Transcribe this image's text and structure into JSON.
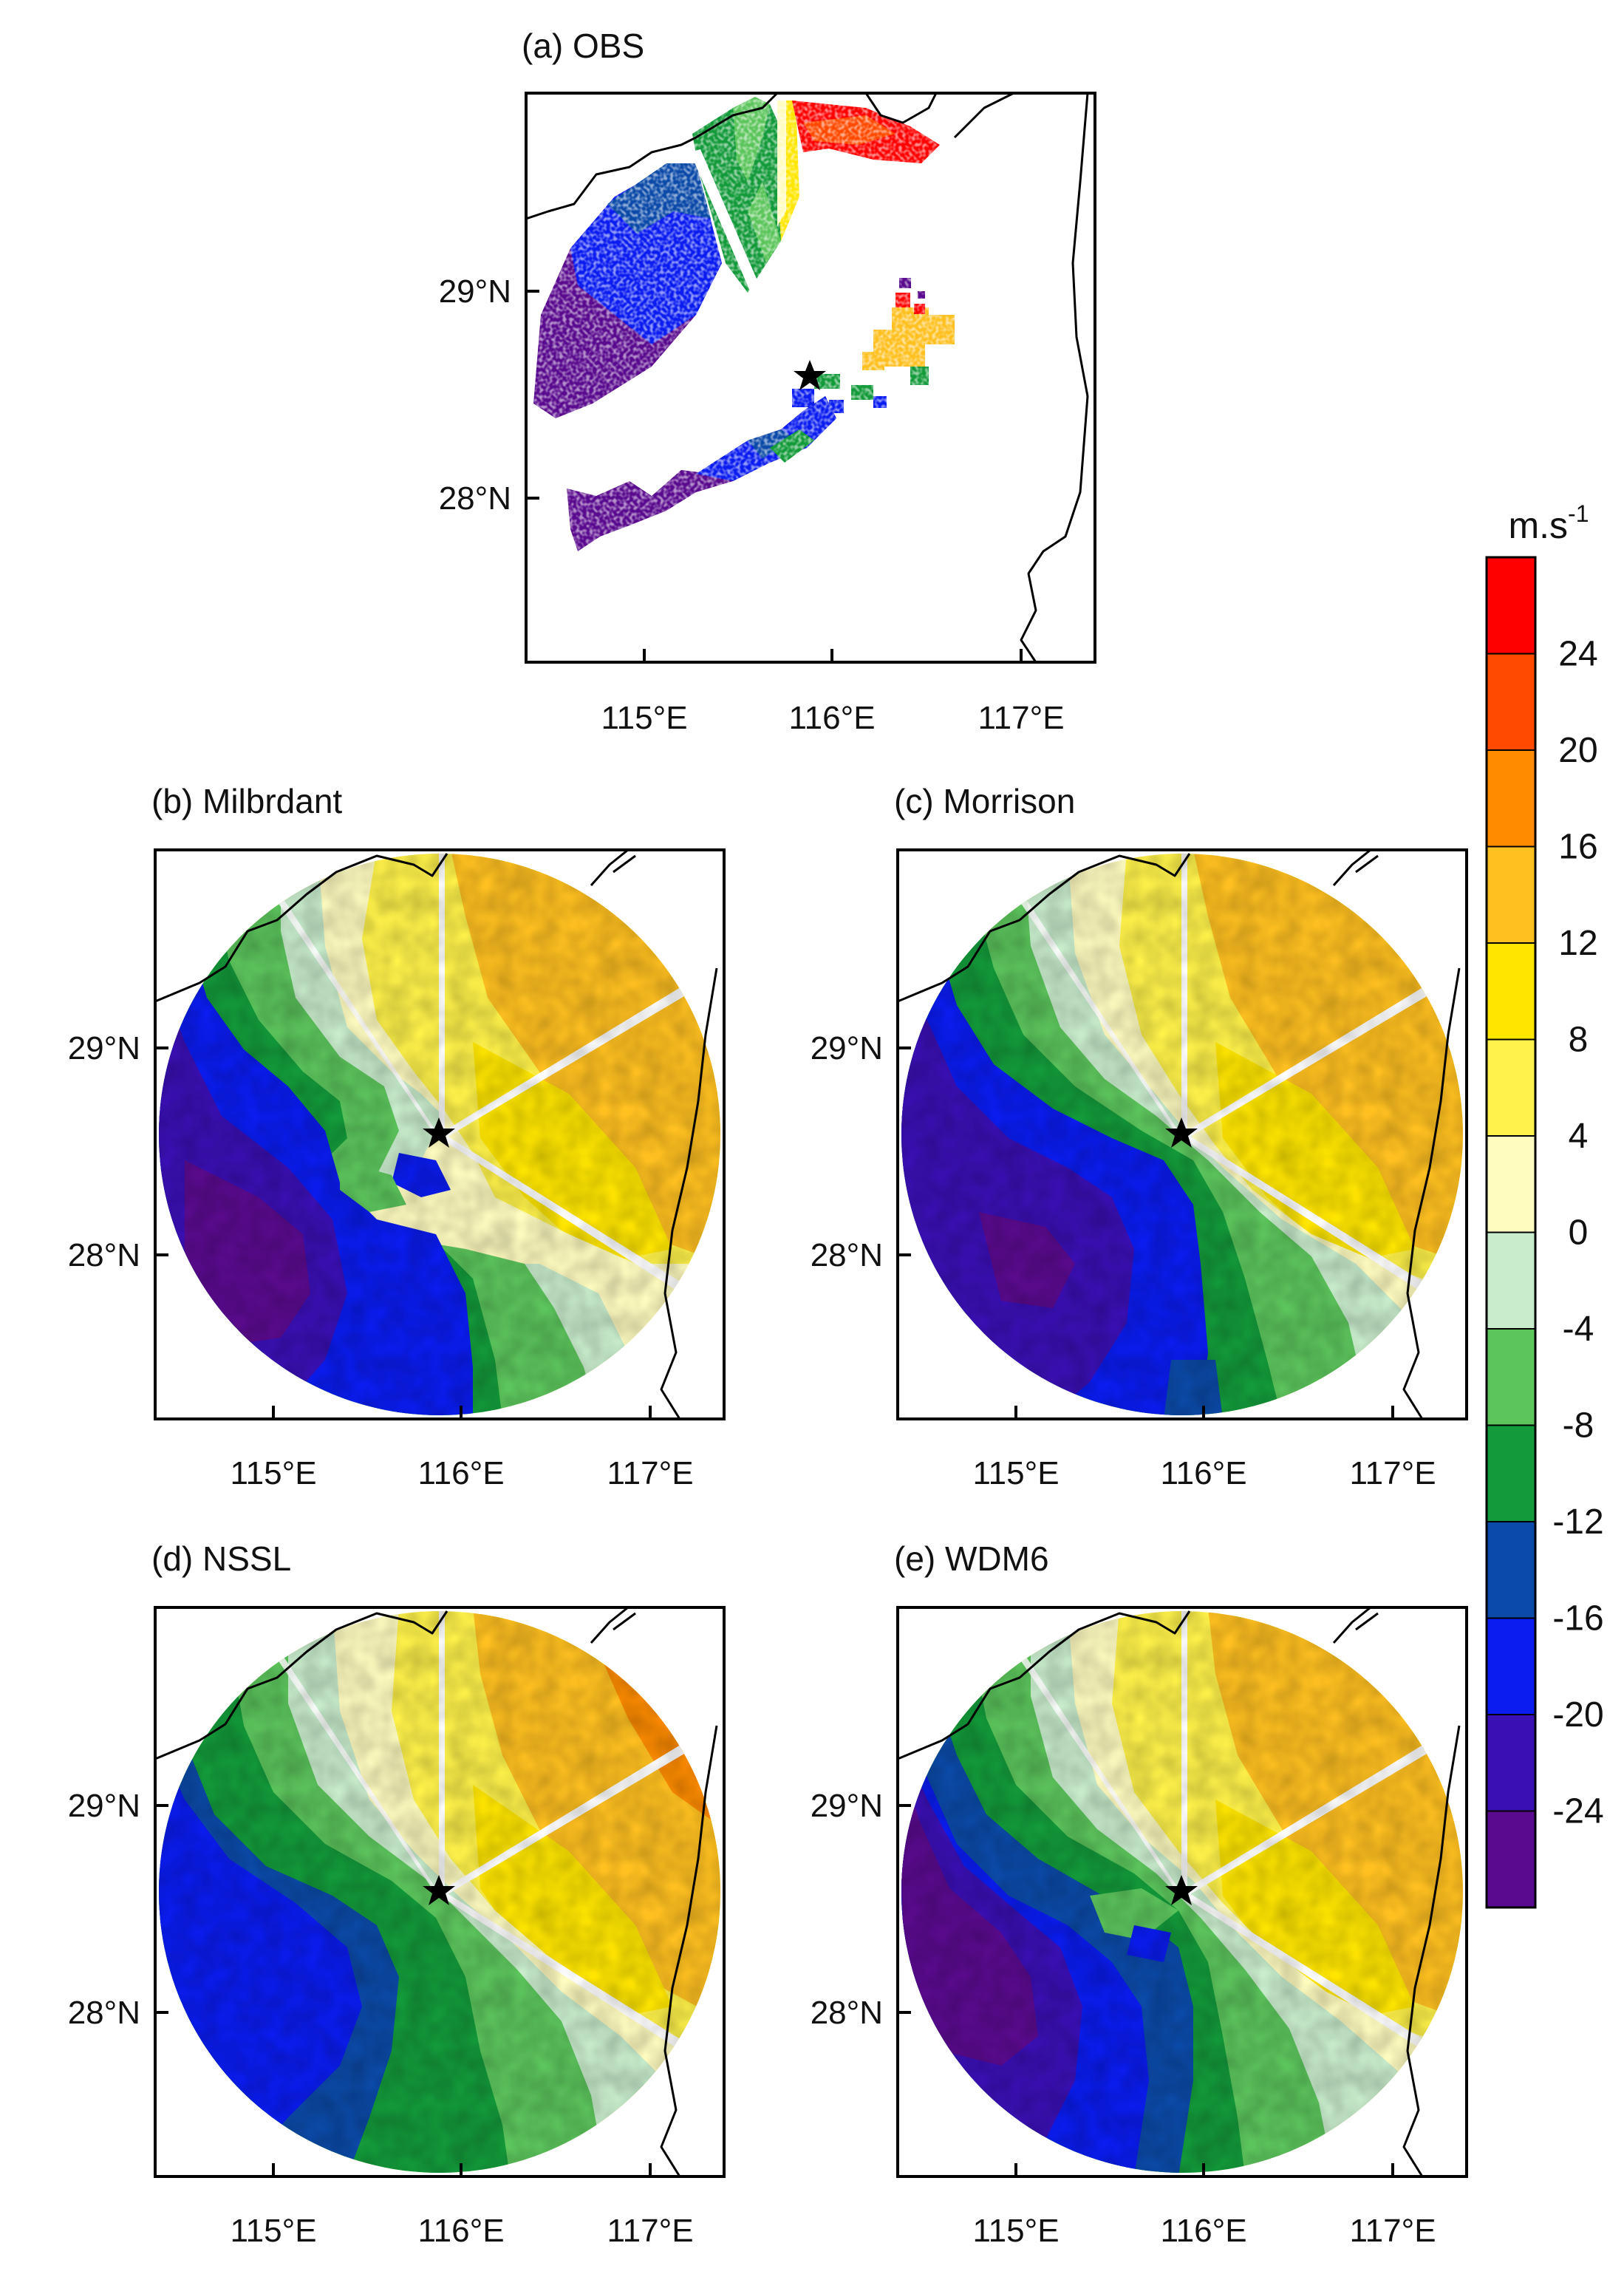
{
  "panels": [
    {
      "id": "a",
      "title": "(a) OBS"
    },
    {
      "id": "b",
      "title": "(b) Milbrdant"
    },
    {
      "id": "c",
      "title": "(c) Morrison"
    },
    {
      "id": "d",
      "title": "(d) NSSL"
    },
    {
      "id": "e",
      "title": "(e) WDM6"
    }
  ],
  "axes": {
    "lon_ticks": [
      "115°E",
      "116°E",
      "117°E"
    ],
    "lat_ticks": [
      "29°N",
      "28°N"
    ]
  },
  "colorbar": {
    "unit": "m.s",
    "unit_exp": "-1",
    "levels": [
      "24",
      "20",
      "16",
      "12",
      "8",
      "4",
      "0",
      "-4",
      "-8",
      "-12",
      "-16",
      "-20",
      "-24"
    ],
    "colors": [
      "#ff0000",
      "#ff4a00",
      "#ff8c00",
      "#ffc020",
      "#ffe600",
      "#fff24a",
      "#fffcc0",
      "#c8eccc",
      "#5cc55c",
      "#139a3a",
      "#0b4aa8",
      "#0a1cf0",
      "#3a0fb4",
      "#5a0a8e"
    ]
  },
  "radar_site": {
    "lon": 115.9,
    "lat": 28.6,
    "marker": "star-icon"
  }
}
